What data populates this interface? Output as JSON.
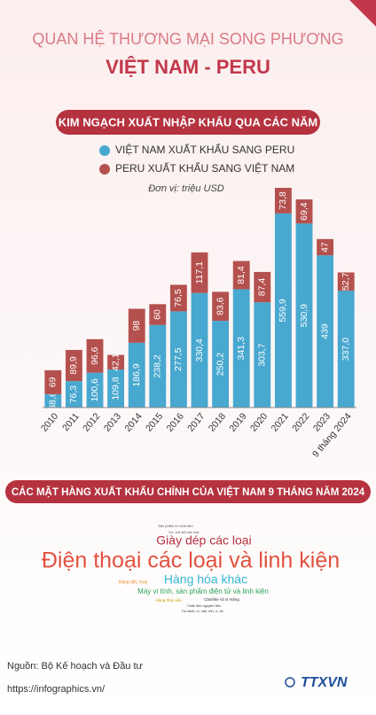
{
  "header": {
    "title": "QUAN HỆ THƯƠNG MẠI SONG PHƯƠNG",
    "subtitle": "VIỆT NAM - PERU"
  },
  "chart_data": {
    "type": "bar",
    "stacked": true,
    "title": "KIM NGẠCH XUẤT NHẬP KHẨU QUA CÁC NĂM",
    "unit": "Đơn vị: triệu USD",
    "categories": [
      "2010",
      "2011",
      "2012",
      "2013",
      "2014",
      "2015",
      "2016",
      "2017",
      "2018",
      "2019",
      "2020",
      "2021",
      "2022",
      "2023",
      "9 tháng 2024"
    ],
    "series": [
      {
        "name": "VIỆT NAM XUẤT KHẨU SANG PERU",
        "color": "#48a8cf",
        "values": [
          38.6,
          76.3,
          100.6,
          109.8,
          186.9,
          238.2,
          277.5,
          330.4,
          250.2,
          341.3,
          303.7,
          559.9,
          530.9,
          439,
          337.0
        ],
        "value_labels": [
          "38,6",
          "76,3",
          "100,6",
          "109,8",
          "186,9",
          "238,2",
          "277,5",
          "330,4",
          "250,2",
          "341,3",
          "303,7",
          "559,9",
          "530,9",
          "439",
          "337,0"
        ]
      },
      {
        "name": "PERU XUẤT KHẨU SANG VIỆT NAM",
        "color": "#b4514e",
        "values": [
          69,
          89.9,
          96.6,
          42.1,
          98,
          60,
          76.5,
          117.1,
          83.6,
          81.4,
          87.4,
          73.8,
          69.4,
          47,
          52.7
        ],
        "value_labels": [
          "69",
          "89,9",
          "96,6",
          "42,1",
          "98",
          "60",
          "76,5",
          "117,1",
          "83,6",
          "81,4",
          "87,4",
          "73,8",
          "69,4",
          "47",
          "52,7"
        ]
      }
    ]
  },
  "word_cloud": {
    "title": "CÁC MẶT HÀNG XUẤT KHẨU CHÍNH CỦA VIỆT NAM 9 THÁNG NĂM 2024",
    "words": [
      "Sản phẩm từ chất dẻo",
      "Xơ, sợi dệt các loại",
      "Giày dép các loại",
      "Điện thoại các loại và linh kiện",
      "Hàng dệt, may",
      "Hàng hóa khác",
      "Máy vi tính, sản phẩm điện tử và linh kiện",
      "Hàng thủy sản",
      "Clanhke và xi măng",
      "Chất dẻo nguyên liệu",
      "Túi xách, ví, vali, mũ, ô, dù"
    ]
  },
  "footer": {
    "source": "Nguồn: Bộ Kế hoạch và Đầu tư",
    "url": "https://infographics.vn/",
    "logo": "TTXVN"
  }
}
